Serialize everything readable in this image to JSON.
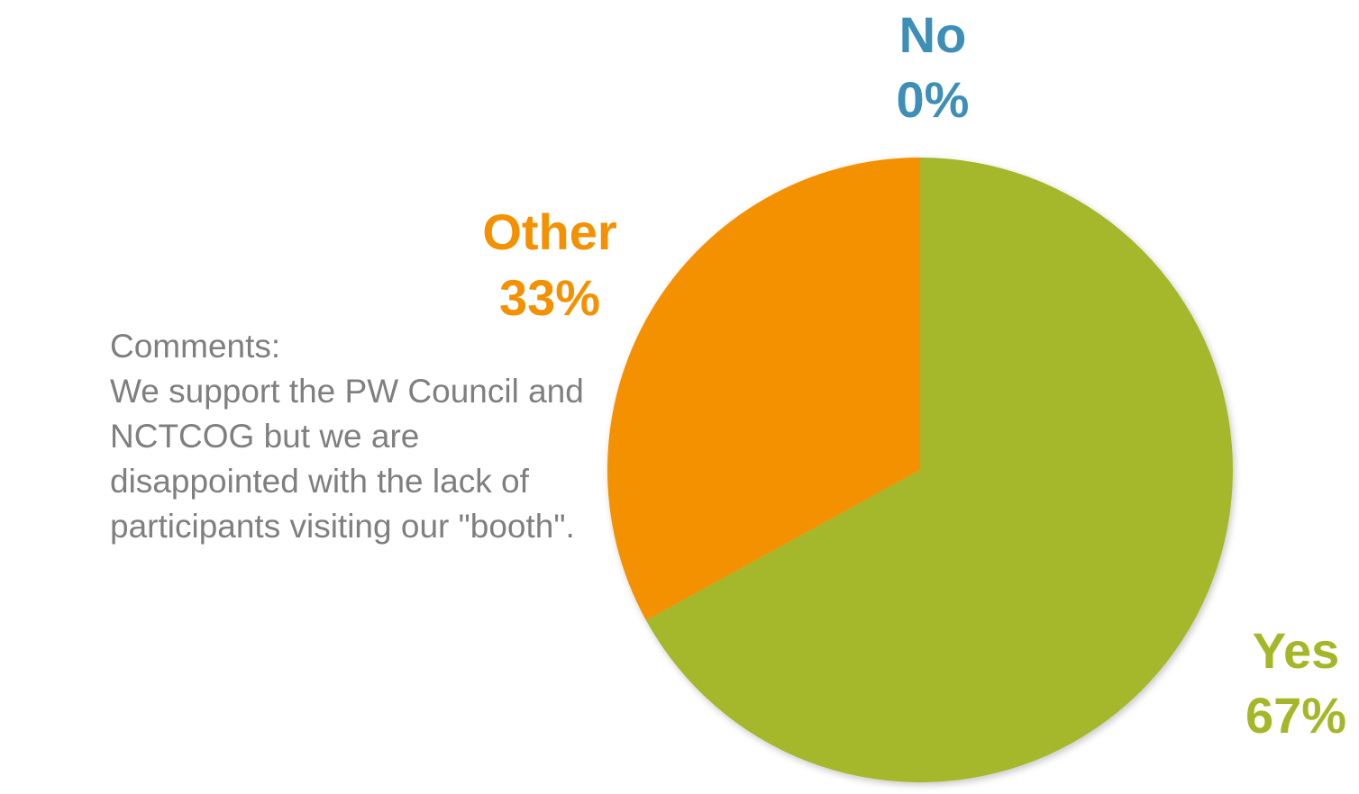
{
  "chart_data": {
    "type": "pie",
    "categories": [
      "No",
      "Other",
      "Yes"
    ],
    "values": [
      0,
      33,
      67
    ],
    "slices": [
      {
        "name": "Yes",
        "value": 67,
        "label_name": "Yes",
        "label_value": "67%",
        "color": "#a5b729"
      },
      {
        "name": "No",
        "value": 0,
        "label_name": "No",
        "label_value": "0%",
        "color": "#3d8fb7"
      },
      {
        "name": "Other",
        "value": 33,
        "label_name": "Other",
        "label_value": "33%",
        "color": "#f39100"
      }
    ],
    "start_angle": "12 o'clock",
    "direction": "clockwise",
    "title": ""
  },
  "comments": {
    "lines": [
      "Comments:",
      "We support the PW Council and",
      "NCTCOG but we are",
      "disappointed with the lack of",
      "participants visiting our \"booth\"."
    ]
  }
}
